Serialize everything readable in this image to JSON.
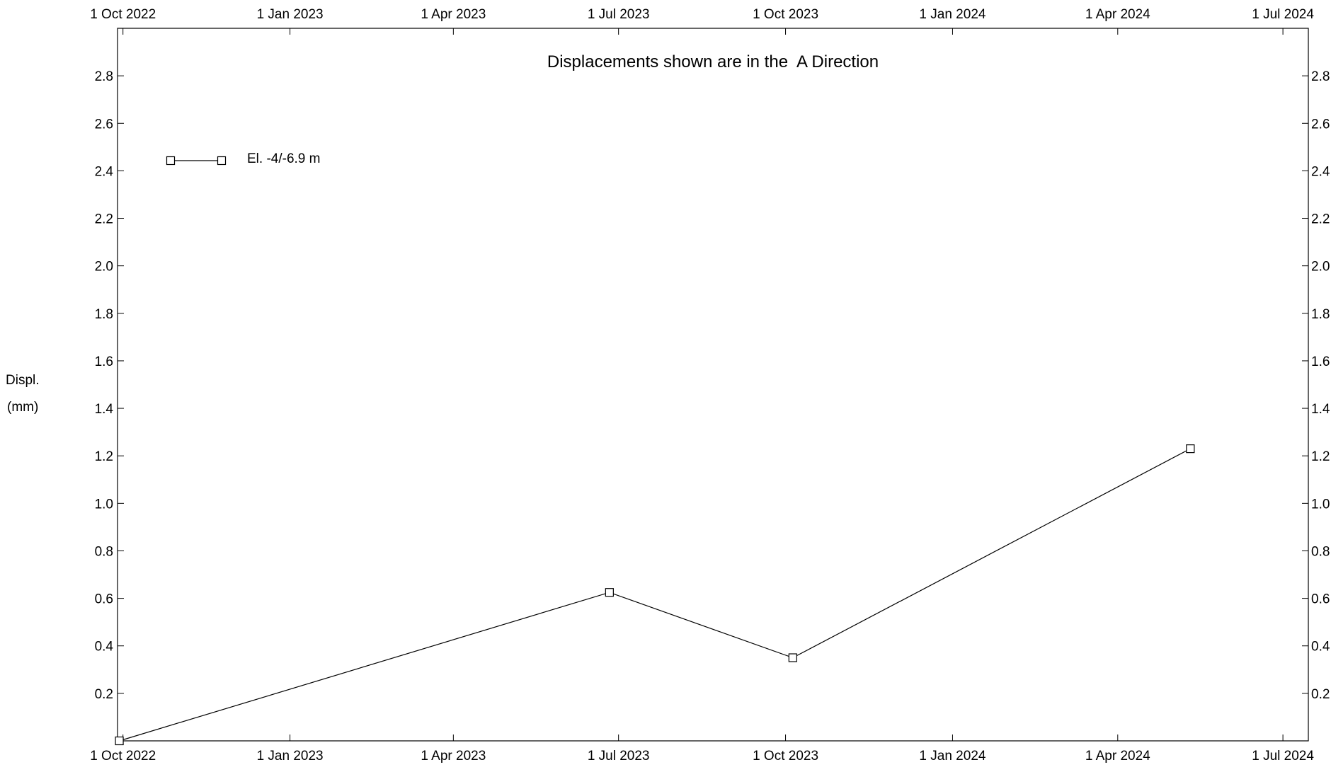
{
  "chart_data": {
    "type": "line",
    "title": "Displacements shown are in the  A Direction",
    "ylabel_lines": [
      "Displ.",
      "(mm)"
    ],
    "x_axis": {
      "type": "date",
      "min": "2022-09-28",
      "max": "2024-07-15",
      "ticks": [
        {
          "date": "2022-10-01",
          "label": "1 Oct 2022"
        },
        {
          "date": "2023-01-01",
          "label": "1 Jan 2023"
        },
        {
          "date": "2023-04-01",
          "label": "1 Apr 2023"
        },
        {
          "date": "2023-07-01",
          "label": "1 Jul 2023"
        },
        {
          "date": "2023-10-01",
          "label": "1 Oct 2023"
        },
        {
          "date": "2024-01-01",
          "label": "1 Jan 2024"
        },
        {
          "date": "2024-04-01",
          "label": "1 Apr 2024"
        },
        {
          "date": "2024-07-01",
          "label": "1 Jul 2024"
        }
      ],
      "ticks_on_top": true
    },
    "y_axis": {
      "min": 0,
      "max": 3.0,
      "ticks": [
        0.2,
        0.4,
        0.6,
        0.8,
        1.0,
        1.2,
        1.4,
        1.6,
        1.8,
        2.0,
        2.2,
        2.4,
        2.6,
        2.8
      ],
      "tick_labels": [
        "0.2",
        "0.4",
        "0.6",
        "0.8",
        "1.0",
        "1.2",
        "1.4",
        "1.6",
        "1.8",
        "2.0",
        "2.2",
        "2.4",
        "2.6",
        "2.8"
      ],
      "labels_both_sides": true
    },
    "grid": false,
    "legend_position": "top-left",
    "series": [
      {
        "name": "El. -4/-6.9 m",
        "marker": "square",
        "color": "#000000",
        "points": [
          {
            "date": "2022-09-29",
            "y": 0.0
          },
          {
            "date": "2023-06-26",
            "y": 0.625
          },
          {
            "date": "2023-10-05",
            "y": 0.35
          },
          {
            "date": "2024-05-11",
            "y": 1.23
          }
        ]
      }
    ]
  }
}
